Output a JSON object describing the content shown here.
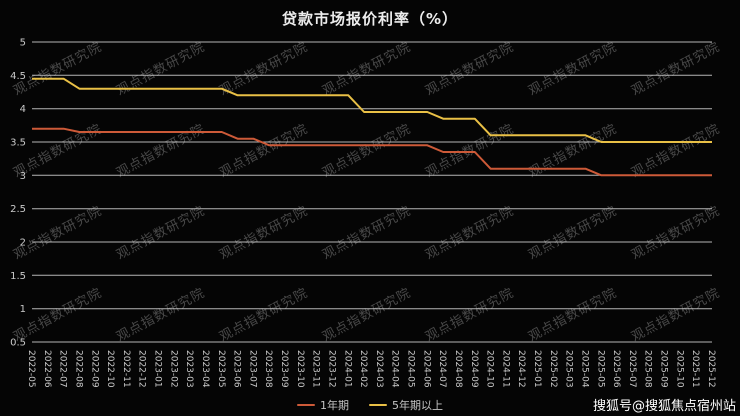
{
  "caption": {
    "text": "搜狐号@搜狐焦点宿州站"
  },
  "watermark": {
    "text": "观点指数研究院"
  },
  "chart_data": {
    "type": "line",
    "title": "贷款市场报价利率（%）",
    "xlabel": "",
    "ylabel": "",
    "ylim": [
      0.5,
      5
    ],
    "ytick_step": 0.5,
    "grid": true,
    "legend_position": "bottom",
    "x": [
      "2022-05",
      "2022-06",
      "2022-07",
      "2022-08",
      "2022-09",
      "2022-10",
      "2022-11",
      "2022-12",
      "2023-01",
      "2023-02",
      "2023-03",
      "2023-04",
      "2023-05",
      "2023-06",
      "2023-07",
      "2023-08",
      "2023-09",
      "2023-10",
      "2023-11",
      "2023-12",
      "2024-01",
      "2024-02",
      "2024-03",
      "2024-04",
      "2024-05",
      "2024-06",
      "2024-07",
      "2024-08",
      "2024-09",
      "2024-10",
      "2024-11",
      "2024-12",
      "2025-01",
      "2025-02",
      "2025-03",
      "2025-04",
      "2025-05",
      "2025-06",
      "2025-07",
      "2025-08",
      "2025-09",
      "2025-10",
      "2025-11",
      "2025-12"
    ],
    "series": [
      {
        "name": "1年期",
        "color": "#cd5a38",
        "values": [
          3.7,
          3.7,
          3.7,
          3.65,
          3.65,
          3.65,
          3.65,
          3.65,
          3.65,
          3.65,
          3.65,
          3.65,
          3.65,
          3.55,
          3.55,
          3.45,
          3.45,
          3.45,
          3.45,
          3.45,
          3.45,
          3.45,
          3.45,
          3.45,
          3.45,
          3.45,
          3.35,
          3.35,
          3.35,
          3.1,
          3.1,
          3.1,
          3.1,
          3.1,
          3.1,
          3.1,
          3.0,
          3.0,
          3.0,
          3.0,
          3.0,
          3.0,
          3.0,
          3.0
        ]
      },
      {
        "name": "5年期以上",
        "color": "#e9c046",
        "values": [
          4.45,
          4.45,
          4.45,
          4.3,
          4.3,
          4.3,
          4.3,
          4.3,
          4.3,
          4.3,
          4.3,
          4.3,
          4.3,
          4.2,
          4.2,
          4.2,
          4.2,
          4.2,
          4.2,
          4.2,
          4.2,
          3.95,
          3.95,
          3.95,
          3.95,
          3.95,
          3.85,
          3.85,
          3.85,
          3.6,
          3.6,
          3.6,
          3.6,
          3.6,
          3.6,
          3.6,
          3.5,
          3.5,
          3.5,
          3.5,
          3.5,
          3.5,
          3.5,
          3.5
        ]
      }
    ]
  }
}
